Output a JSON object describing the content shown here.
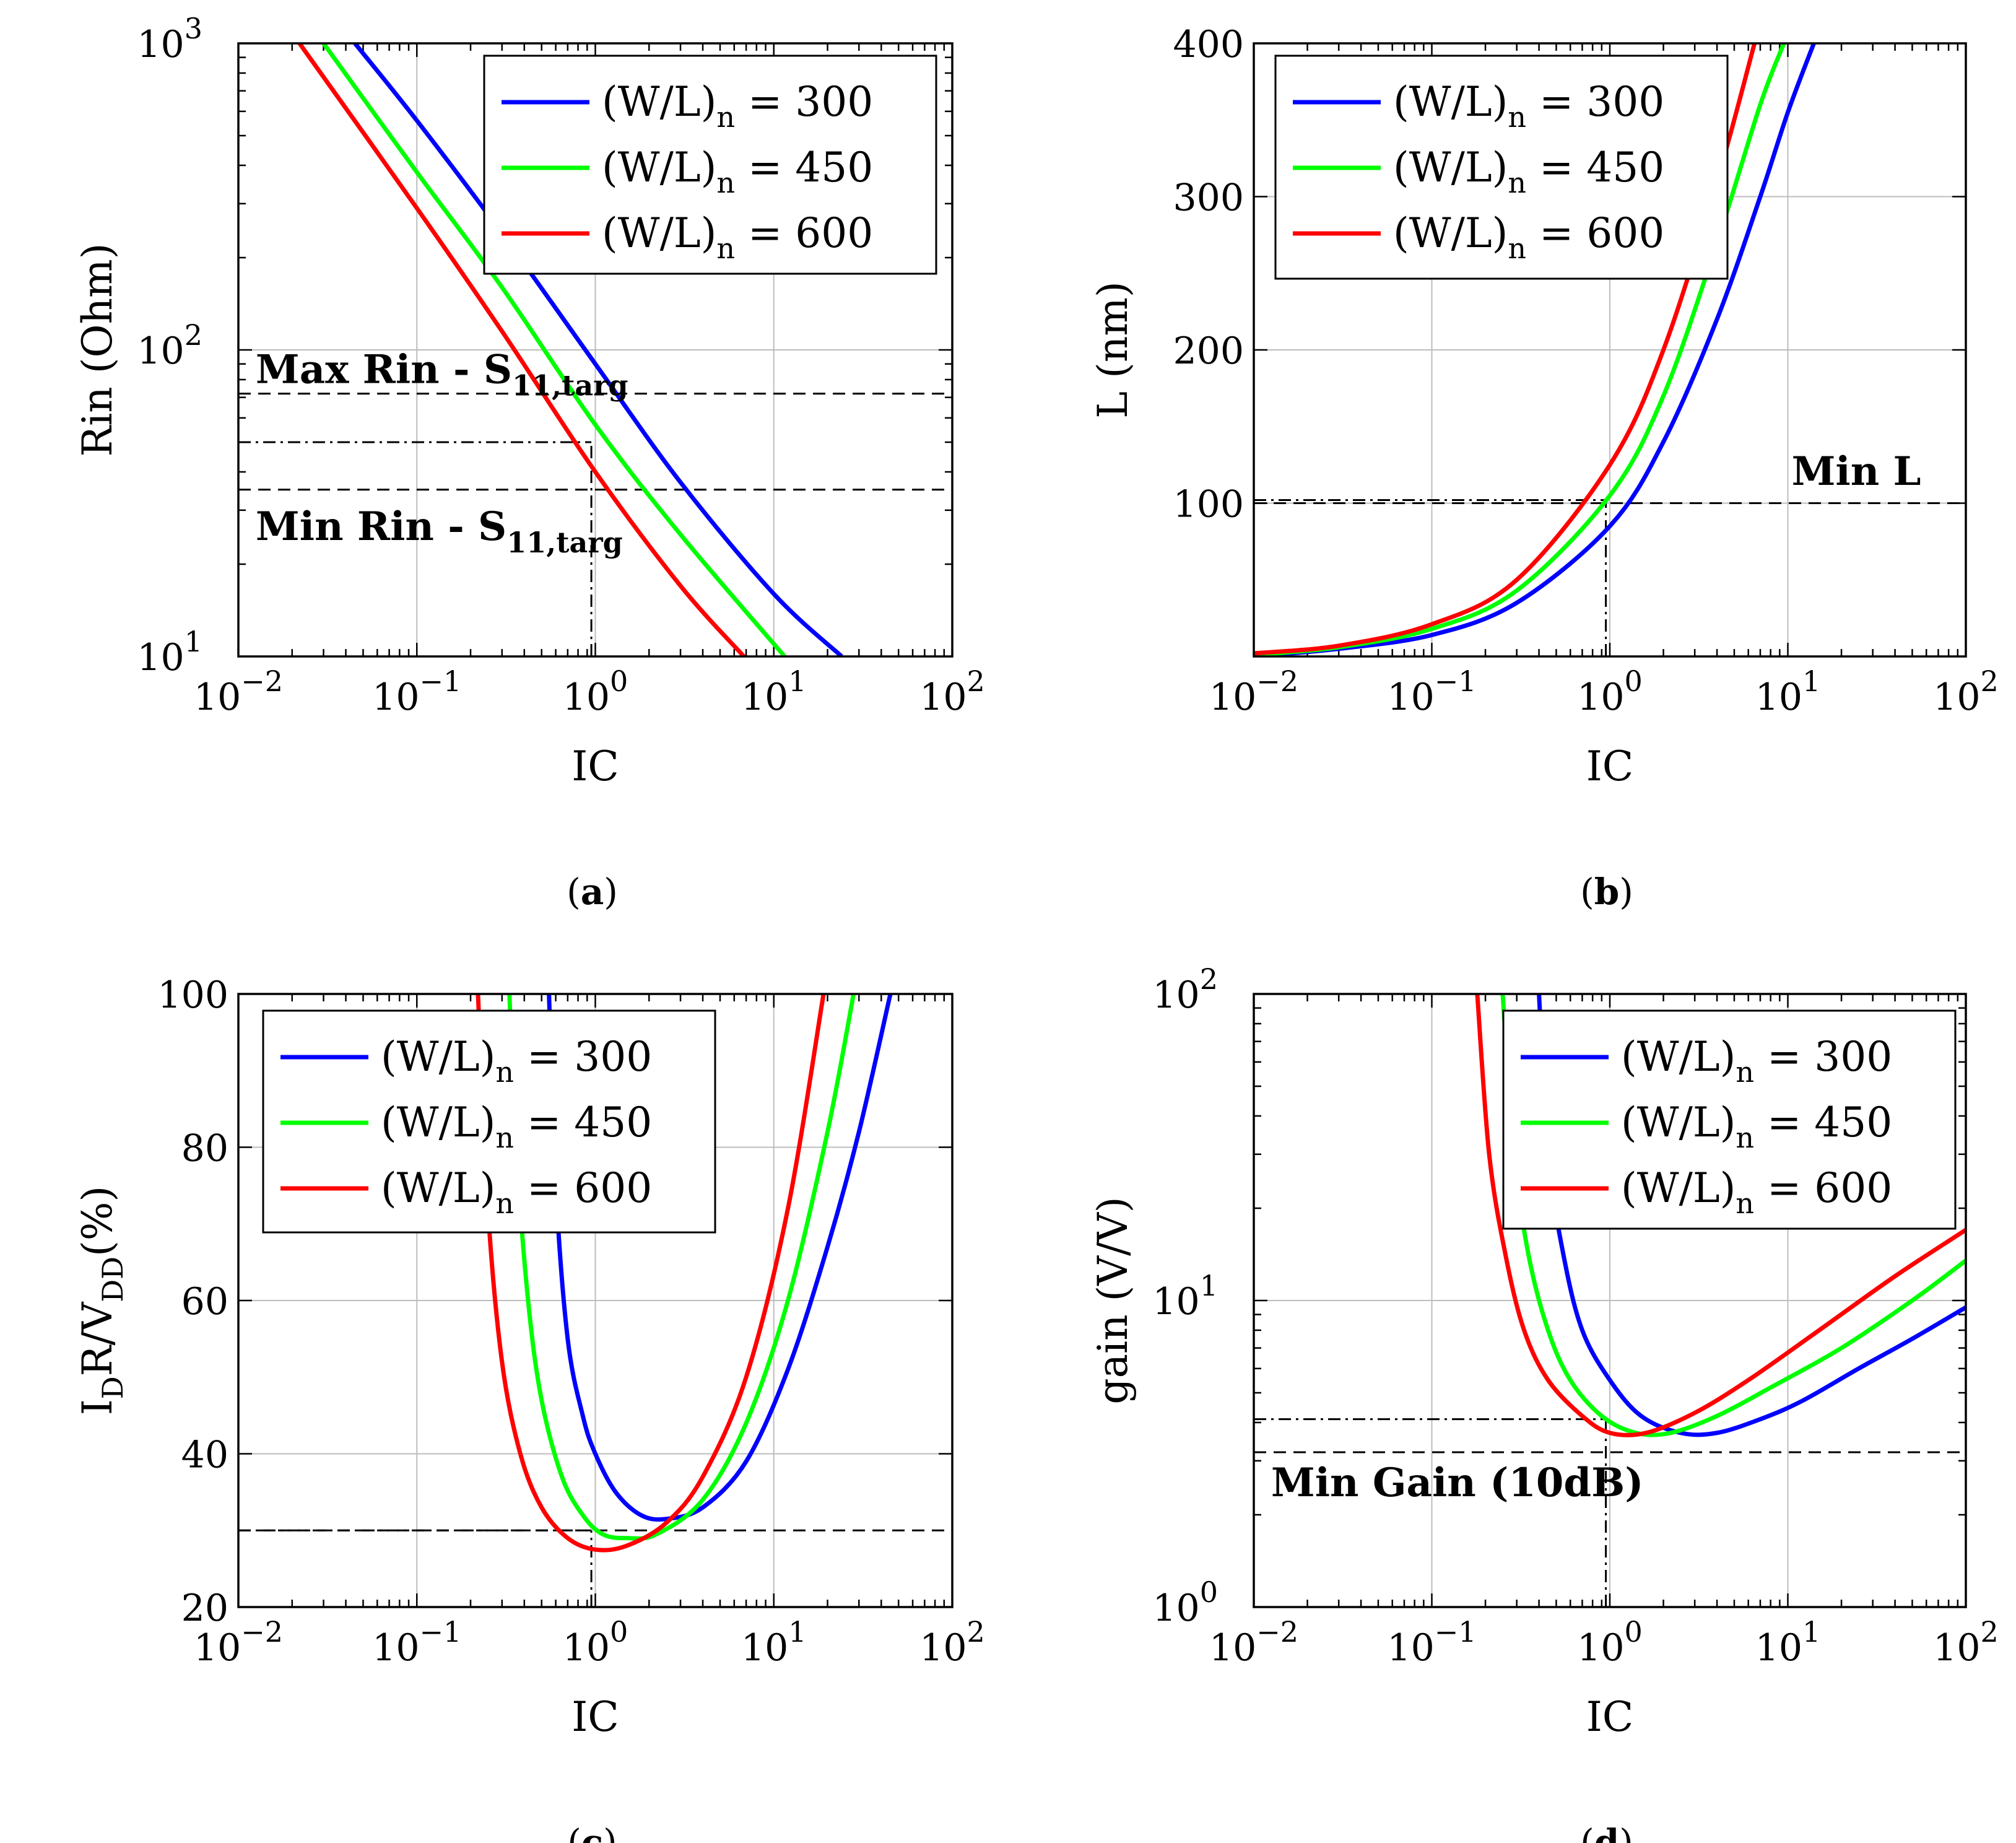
{
  "series_colors": [
    "#0000ff",
    "#00ff00",
    "#ff0000"
  ],
  "chart_data": [
    {
      "caption": "a",
      "type": "line",
      "xlabel": "IC",
      "xscale": "log",
      "xlim": [
        0.01,
        100
      ],
      "ylabel": "Rin (Ohm)",
      "yscale": "log",
      "ylim": [
        10,
        1000
      ],
      "legend": "top-right",
      "series": [
        {
          "label_main": "(W/L)",
          "label_sub": "n",
          "label_rest": " = 300",
          "x": [
            0.045,
            0.1,
            0.3,
            1,
            3,
            10,
            24
          ],
          "y": [
            1000,
            560,
            240,
            90,
            37,
            16,
            10
          ]
        },
        {
          "label_main": "(W/L)",
          "label_sub": "n",
          "label_rest": " = 450",
          "x": [
            0.03,
            0.1,
            0.3,
            1,
            3,
            11.5
          ],
          "y": [
            1000,
            380,
            160,
            57,
            25,
            10
          ]
        },
        {
          "label_main": "(W/L)",
          "label_sub": "n",
          "label_rest": " = 600",
          "x": [
            0.022,
            0.1,
            0.3,
            1,
            3,
            6.8
          ],
          "y": [
            1000,
            290,
            115,
            40,
            17,
            10
          ]
        }
      ],
      "hlines": [
        {
          "y": 72,
          "style": "dashed",
          "x_from": 0.01,
          "x_to": 100
        },
        {
          "y": 35,
          "style": "dashed",
          "x_from": 0.01,
          "x_to": 100
        },
        {
          "y": 50,
          "style": "dashdot",
          "x_from": 0.01,
          "x_to": 0.95
        }
      ],
      "vlines": [
        {
          "x": 0.95,
          "style": "dashdot",
          "y_from": 10,
          "y_to": 50
        }
      ],
      "annotations": [
        {
          "main": "Max Rin - S",
          "sub": "11,targ",
          "x": 0.0125,
          "y": 78
        },
        {
          "main": "Min Rin - S",
          "sub": "11,targ",
          "x": 0.0125,
          "y": 24
        }
      ]
    },
    {
      "caption": "b",
      "type": "line",
      "xlabel": "IC",
      "xscale": "log",
      "xlim": [
        0.01,
        100
      ],
      "ylabel": "L (nm)",
      "yscale": "linear",
      "ylim": [
        0,
        400
      ],
      "yticks": [
        100,
        200,
        300,
        400
      ],
      "legend": "top-left",
      "series": [
        {
          "label_main": "(W/L)",
          "label_sub": "n",
          "label_rest": " = 300",
          "x": [
            0.01,
            0.03,
            0.1,
            0.3,
            1,
            2,
            4,
            7,
            10,
            14
          ],
          "y": [
            0,
            5,
            14,
            35,
            85,
            140,
            220,
            300,
            355,
            400
          ]
        },
        {
          "label_main": "(W/L)",
          "label_sub": "n",
          "label_rest": " = 450",
          "x": [
            0.01,
            0.03,
            0.1,
            0.3,
            1,
            2,
            4,
            7,
            9.5
          ],
          "y": [
            1,
            6,
            18,
            43,
            105,
            170,
            270,
            360,
            400
          ]
        },
        {
          "label_main": "(W/L)",
          "label_sub": "n",
          "label_rest": " = 600",
          "x": [
            0.01,
            0.03,
            0.1,
            0.3,
            1,
            2,
            4,
            6.5
          ],
          "y": [
            2,
            7,
            21,
            50,
            125,
            200,
            310,
            400
          ]
        }
      ],
      "hlines": [
        {
          "y": 100,
          "style": "dashed",
          "x_from": 0.01,
          "x_to": 100
        },
        {
          "y": 102,
          "style": "dashdot",
          "x_from": 0.01,
          "x_to": 0.95
        }
      ],
      "vlines": [
        {
          "x": 0.95,
          "style": "dashdot",
          "y_from": 0,
          "y_to": 102
        }
      ],
      "annotations": [
        {
          "main": "Min L",
          "sub": "",
          "x": 10.5,
          "y": 112
        }
      ]
    },
    {
      "caption": "c",
      "type": "line",
      "xlabel": "IC",
      "xscale": "log",
      "xlim": [
        0.01,
        100
      ],
      "ylabel_main": "I",
      "ylabel_sub1": "D",
      "ylabel_mid": "R/V",
      "ylabel_sub2": "DD",
      "ylabel_rest": "(%)",
      "yscale": "linear",
      "ylim": [
        20,
        100
      ],
      "yticks": [
        20,
        40,
        60,
        80,
        100
      ],
      "legend": "top-left",
      "series": [
        {
          "label_main": "(W/L)",
          "label_sub": "n",
          "label_rest": " = 300",
          "x": [
            0.55,
            0.6,
            0.7,
            0.85,
            1,
            1.3,
            1.8,
            2.5,
            4,
            7,
            12,
            20,
            30,
            45
          ],
          "y": [
            100,
            75,
            55,
            45,
            40,
            35,
            32,
            31.5,
            33,
            39,
            51,
            67,
            82,
            100
          ]
        },
        {
          "label_main": "(W/L)",
          "label_sub": "n",
          "label_rest": " = 450",
          "x": [
            0.33,
            0.36,
            0.42,
            0.5,
            0.65,
            0.85,
            1.1,
            1.5,
            2.2,
            4,
            7,
            12,
            20,
            28
          ],
          "y": [
            100,
            80,
            60,
            47,
            37,
            32,
            29.5,
            29,
            29.5,
            34,
            44,
            60,
            82,
            100
          ]
        },
        {
          "label_main": "(W/L)",
          "label_sub": "n",
          "label_rest": " = 600",
          "x": [
            0.22,
            0.25,
            0.3,
            0.38,
            0.5,
            0.7,
            1,
            1.5,
            2.5,
            4,
            7,
            12,
            19
          ],
          "y": [
            100,
            72,
            52,
            40,
            33,
            29,
            27.5,
            28,
            31,
            37,
            50,
            72,
            100
          ]
        }
      ],
      "hlines": [
        {
          "y": 30,
          "style": "dashed",
          "x_from": 0.01,
          "x_to": 100
        },
        {
          "y": 30,
          "style": "dashdot",
          "x_from": 0.01,
          "x_to": 0.95
        }
      ],
      "vlines": [
        {
          "x": 0.95,
          "style": "dashdot",
          "y_from": 20,
          "y_to": 30
        }
      ],
      "annotations": []
    },
    {
      "caption": "d",
      "type": "line",
      "xlabel": "IC",
      "xscale": "log",
      "xlim": [
        0.01,
        100
      ],
      "ylabel": "gain (V/V)",
      "yscale": "log",
      "ylim": [
        1,
        100
      ],
      "legend": "top-right",
      "series": [
        {
          "label_main": "(W/L)",
          "label_sub": "n",
          "label_rest": " = 300",
          "x": [
            0.4,
            0.45,
            0.55,
            0.7,
            1,
            1.5,
            2.5,
            4,
            7,
            12,
            25,
            50,
            100
          ],
          "y": [
            100,
            30,
            14,
            8,
            5.5,
            4.2,
            3.7,
            3.7,
            4.1,
            4.7,
            6,
            7.5,
            9.5
          ]
        },
        {
          "label_main": "(W/L)",
          "label_sub": "n",
          "label_rest": " = 450",
          "x": [
            0.25,
            0.29,
            0.35,
            0.45,
            0.6,
            0.9,
            1.4,
            2.2,
            4,
            8,
            20,
            50,
            100
          ],
          "y": [
            100,
            30,
            14,
            8,
            5.5,
            4.2,
            3.7,
            3.7,
            4.2,
            5.2,
            7,
            10,
            13.5
          ]
        },
        {
          "label_main": "(W/L)",
          "label_sub": "n",
          "label_rest": " = 600",
          "x": [
            0.18,
            0.21,
            0.26,
            0.33,
            0.45,
            0.7,
            1,
            1.6,
            3,
            6,
            15,
            40,
            100
          ],
          "y": [
            100,
            30,
            14,
            8,
            5.5,
            4.2,
            3.7,
            3.7,
            4.3,
            5.5,
            8,
            12,
            17
          ]
        }
      ],
      "hlines": [
        {
          "y": 3.2,
          "style": "dashed",
          "x_from": 0.01,
          "x_to": 100
        },
        {
          "y": 4.1,
          "style": "dashdot",
          "x_from": 0.01,
          "x_to": 0.95
        }
      ],
      "vlines": [
        {
          "x": 0.95,
          "style": "dashdot",
          "y_from": 1,
          "y_to": 4.1
        }
      ],
      "annotations": [
        {
          "main": "Min Gain (10dB)",
          "sub": "",
          "x": 0.0125,
          "y": 2.3
        }
      ]
    }
  ]
}
